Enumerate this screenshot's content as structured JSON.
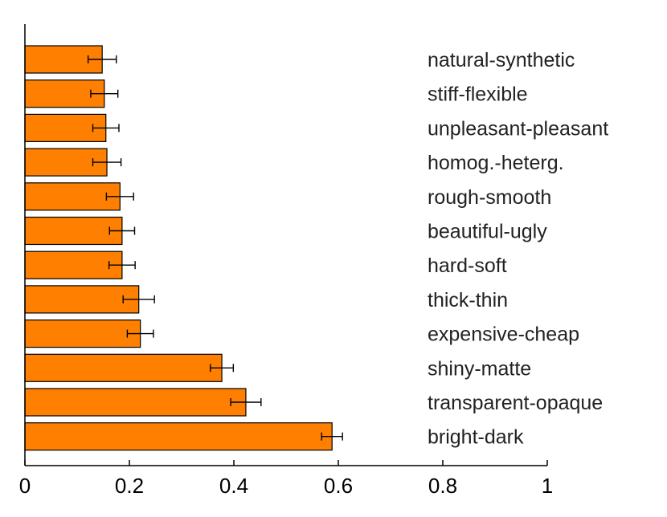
{
  "chart_data": {
    "type": "bar",
    "orientation": "horizontal",
    "title": "",
    "xlabel": "",
    "ylabel": "",
    "xlim": [
      0,
      1
    ],
    "xticks": [
      0,
      0.2,
      0.4,
      0.6,
      0.8,
      1
    ],
    "xtick_labels": [
      "0",
      "0.2",
      "0.4",
      "0.6",
      "0.8",
      "1"
    ],
    "grid": false,
    "bar_color": "#ff7f00",
    "categories": [
      "natural-synthetic",
      "stiff-flexible",
      "unpleasant-pleasant",
      "homog.-heterg.",
      "rough-smooth",
      "beautiful-ugly",
      "hard-soft",
      "thick-thin",
      "expensive-cheap",
      "shiny-matte",
      "transparent-opaque",
      "bright-dark"
    ],
    "values": [
      0.148,
      0.152,
      0.155,
      0.157,
      0.182,
      0.186,
      0.186,
      0.218,
      0.221,
      0.377,
      0.423,
      0.588
    ],
    "errors": [
      0.027,
      0.026,
      0.025,
      0.027,
      0.026,
      0.024,
      0.025,
      0.03,
      0.025,
      0.022,
      0.029,
      0.02
    ]
  }
}
